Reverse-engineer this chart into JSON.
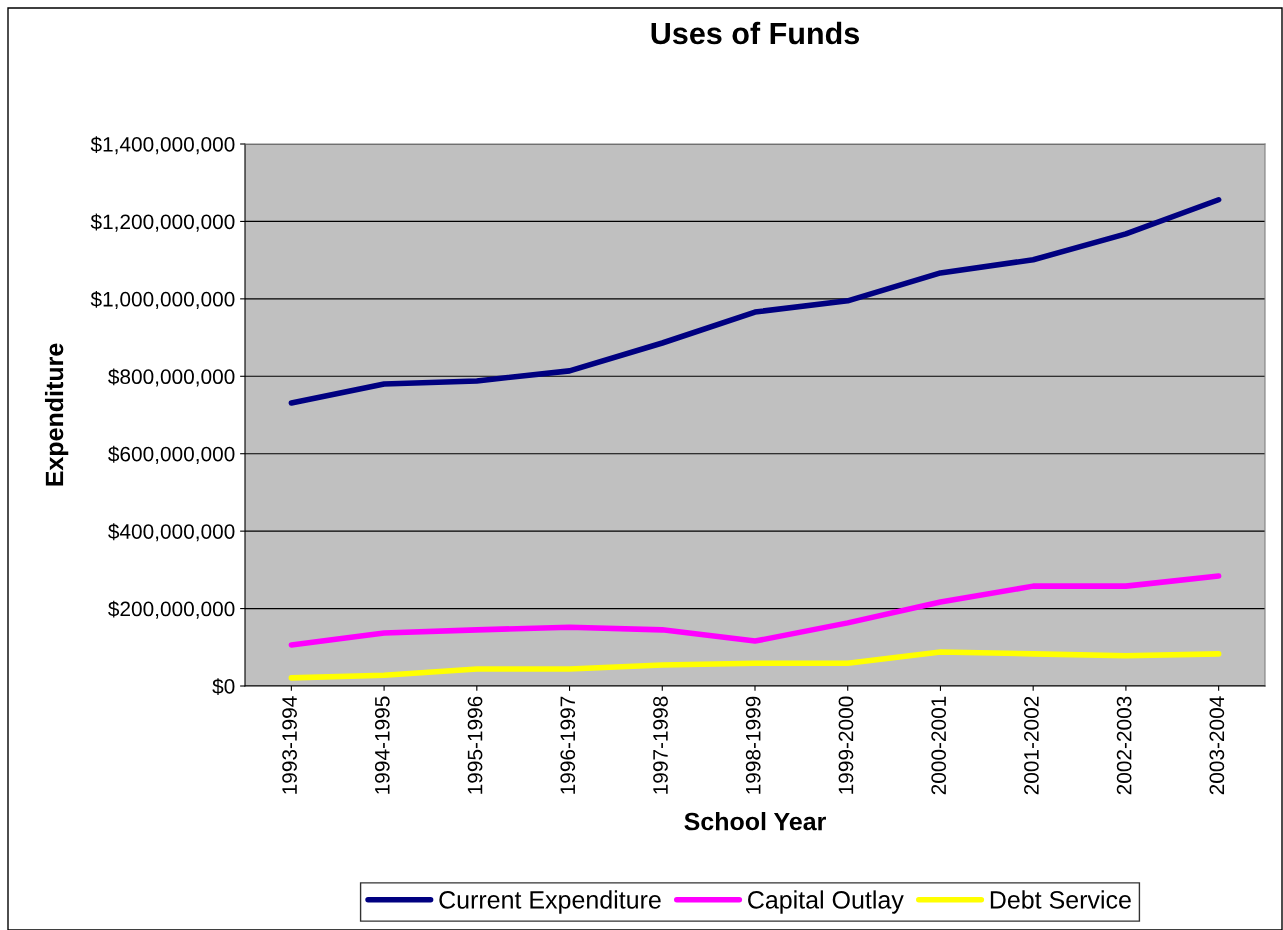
{
  "chart_data": {
    "type": "line",
    "title": "Uses of Funds",
    "xlabel": "School Year",
    "ylabel": "Expenditure",
    "categories": [
      "1993-1994",
      "1994-1995",
      "1995-1996",
      "1996-1997",
      "1997-1998",
      "1998-1999",
      "1999-2000",
      "2000-2001",
      "2001-2002",
      "2002-2003",
      "2003-2004"
    ],
    "series": [
      {
        "name": "Current Expenditure",
        "color": "#000080",
        "values": [
          731000000,
          780000000,
          788000000,
          814000000,
          886000000,
          966000000,
          995000000,
          1067000000,
          1101000000,
          1168000000,
          1256000000
        ]
      },
      {
        "name": "Capital Outlay",
        "color": "#ff00ff",
        "values": [
          106000000,
          137000000,
          145000000,
          152000000,
          145000000,
          116000000,
          163000000,
          217000000,
          258000000,
          258000000,
          284000000
        ]
      },
      {
        "name": "Debt Service",
        "color": "#ffff00",
        "values": [
          21000000,
          28000000,
          44000000,
          44000000,
          54000000,
          59000000,
          59000000,
          88000000,
          83000000,
          78000000,
          83000000
        ]
      }
    ],
    "ylim": [
      0,
      1400000000
    ],
    "yticks": [
      {
        "value": 0,
        "label": "$0"
      },
      {
        "value": 200000000,
        "label": "$200,000,000"
      },
      {
        "value": 400000000,
        "label": "$400,000,000"
      },
      {
        "value": 600000000,
        "label": "$600,000,000"
      },
      {
        "value": 800000000,
        "label": "$800,000,000"
      },
      {
        "value": 1000000000,
        "label": "$1,000,000,000"
      },
      {
        "value": 1200000000,
        "label": "$1,200,000,000"
      },
      {
        "value": 1400000000,
        "label": "$1,400,000,000"
      }
    ],
    "grid": "y",
    "legend": "bottom",
    "marker": "none",
    "line_style": "solid"
  }
}
